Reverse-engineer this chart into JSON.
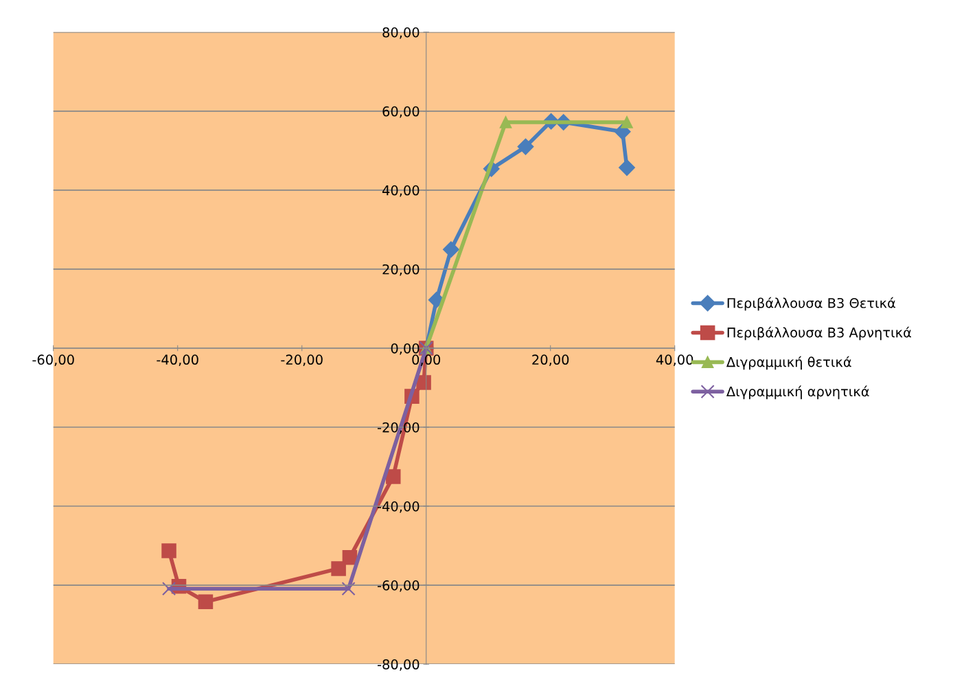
{
  "chart_data": {
    "type": "line",
    "series": [
      {
        "name": "Περιβάλλουσα Β3 Θετικά",
        "color": "#4a7ebb",
        "marker": "diamond",
        "x": [
          0,
          1.66,
          4.0,
          10.5,
          16.0,
          20.1,
          22.1,
          31.6,
          32.3
        ],
        "values": [
          0,
          12.2,
          25.0,
          45.4,
          51.0,
          57.4,
          57.2,
          54.8,
          45.7
        ]
      },
      {
        "name": "Περιβάλλουσα Β3 Αρνητικά",
        "color": "#be4b48",
        "marker": "square",
        "x": [
          0,
          -0.4,
          -2.3,
          -5.3,
          -12.3,
          -14.1,
          -35.5,
          -39.8,
          -41.4
        ],
        "values": [
          0,
          -8.7,
          -12.2,
          -32.5,
          -53.0,
          -55.8,
          -64.2,
          -60.3,
          -51.3
        ]
      },
      {
        "name": "Διγραμμική θετικά",
        "color": "#98b954",
        "marker": "triangle",
        "x": [
          0,
          12.8,
          32.3
        ],
        "values": [
          0,
          57.2,
          57.2
        ]
      },
      {
        "name": "Διγραμμική αρνητικά",
        "color": "#7d60a0",
        "marker": "cross",
        "x": [
          0,
          -12.5,
          -41.4
        ],
        "values": [
          0,
          -60.9,
          -60.9
        ]
      }
    ],
    "xlim": [
      -60,
      40
    ],
    "ylim": [
      -80,
      80
    ],
    "xticks": [
      {
        "value": -60,
        "label": "-60,00"
      },
      {
        "value": -40,
        "label": "-40,00"
      },
      {
        "value": -20,
        "label": "-20,00"
      },
      {
        "value": 0,
        "label": "0,00"
      },
      {
        "value": 20,
        "label": "20,00"
      },
      {
        "value": 40,
        "label": "40,00"
      }
    ],
    "yticks": [
      {
        "value": -80,
        "label": "-80,00"
      },
      {
        "value": -60,
        "label": "-60,00"
      },
      {
        "value": -40,
        "label": "-40,00"
      },
      {
        "value": -20,
        "label": "-20,00"
      },
      {
        "value": 0,
        "label": "0,00"
      },
      {
        "value": 20,
        "label": "20,00"
      },
      {
        "value": 40,
        "label": "40,00"
      },
      {
        "value": 60,
        "label": "60,00"
      },
      {
        "value": 80,
        "label": "80,00"
      }
    ],
    "grid": "y",
    "legend": "right",
    "line_style": "solid"
  }
}
